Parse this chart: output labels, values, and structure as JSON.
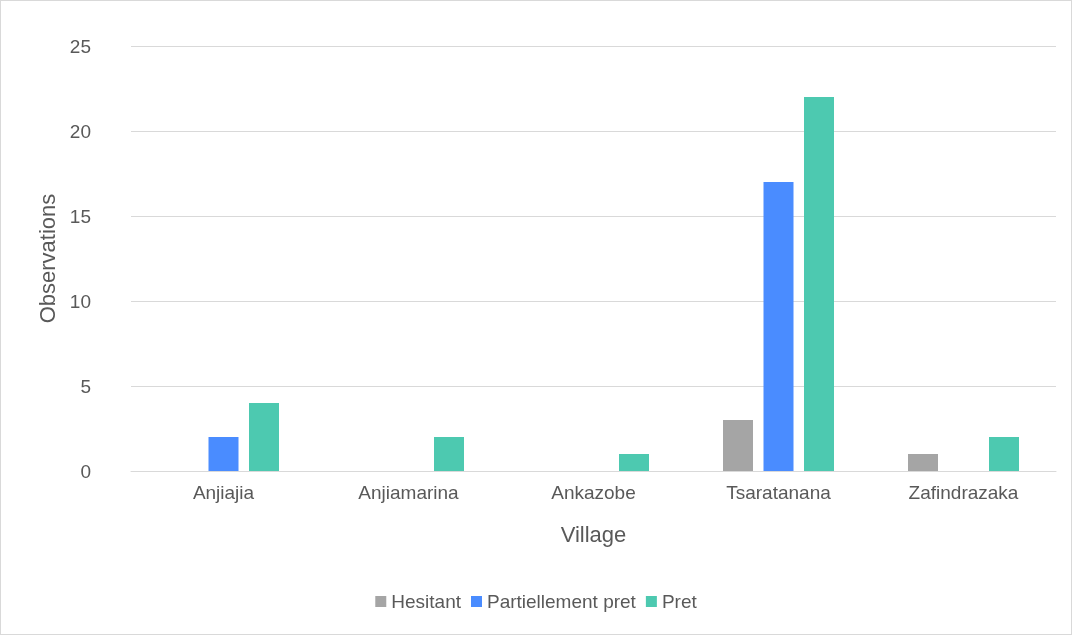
{
  "chart_data": {
    "type": "bar",
    "xlabel": "Village",
    "ylabel": "Observations",
    "categories": [
      "Anjiajia",
      "Anjiamarina",
      "Ankazobe",
      "Tsaratanana",
      "Zafindrazaka"
    ],
    "series": [
      {
        "name": "Hesitant",
        "color": "#a5a5a5",
        "values": [
          0,
          0,
          0,
          3,
          1
        ]
      },
      {
        "name": "Partiellement pret",
        "color": "#4a8cff",
        "values": [
          2,
          0,
          0,
          17,
          0
        ]
      },
      {
        "name": "Pret",
        "color": "#4dc9b0",
        "values": [
          4,
          2,
          1,
          22,
          2
        ]
      }
    ],
    "ylim": [
      0,
      25
    ],
    "yticks": [
      0,
      5,
      10,
      15,
      20,
      25
    ],
    "grid": "y",
    "legend": "bottom"
  }
}
